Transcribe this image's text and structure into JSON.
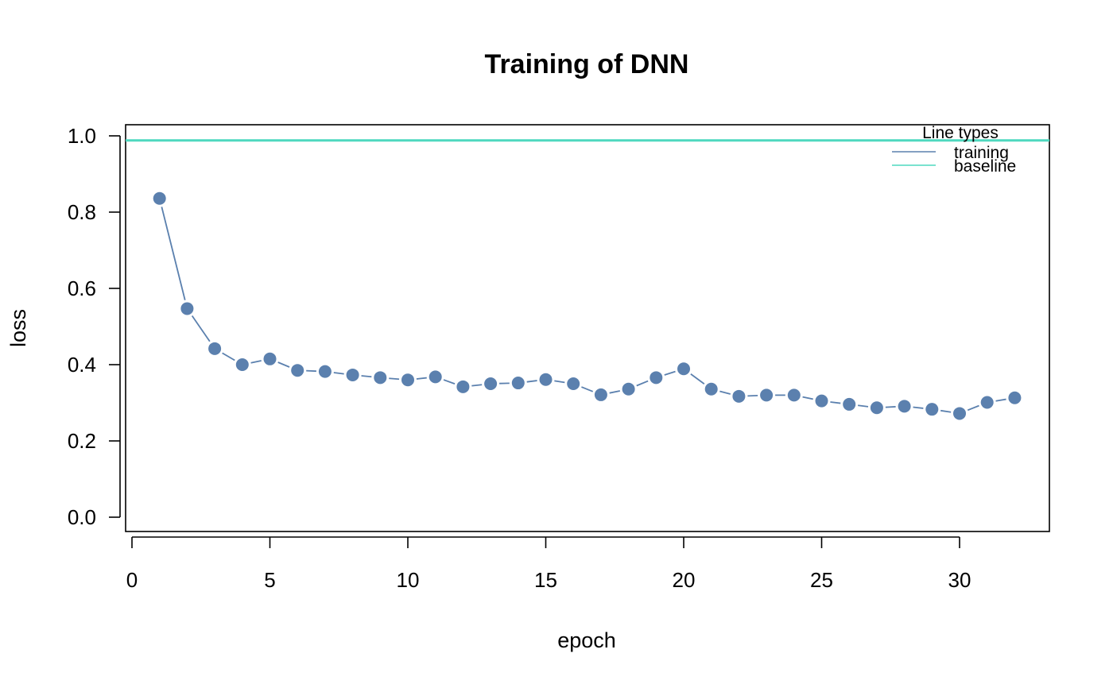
{
  "chart_data": {
    "type": "line",
    "title": "Training of DNN",
    "xlabel": "epoch",
    "ylabel": "loss",
    "xlim": [
      0,
      33
    ],
    "ylim": [
      0,
      1.0
    ],
    "x_ticks": [
      "0",
      "5",
      "10",
      "15",
      "20",
      "25",
      "30"
    ],
    "y_ticks": [
      "0.0",
      "0.2",
      "0.4",
      "0.6",
      "0.8",
      "1.0"
    ],
    "grid": false,
    "legend": {
      "title": "Line types",
      "position": "top-right",
      "entries": [
        "training",
        "baseline"
      ]
    },
    "series": [
      {
        "name": "training",
        "style": "line-with-points",
        "color": "#5b80ae",
        "x": [
          1,
          2,
          3,
          4,
          5,
          6,
          7,
          8,
          9,
          10,
          11,
          12,
          13,
          14,
          15,
          16,
          17,
          18,
          19,
          20,
          21,
          22,
          23,
          24,
          25,
          26,
          27,
          28,
          29,
          30,
          31,
          32
        ],
        "y": [
          0.836,
          0.547,
          0.442,
          0.4,
          0.415,
          0.385,
          0.382,
          0.373,
          0.366,
          0.36,
          0.368,
          0.342,
          0.35,
          0.352,
          0.361,
          0.35,
          0.321,
          0.336,
          0.366,
          0.389,
          0.336,
          0.317,
          0.32,
          0.32,
          0.305,
          0.296,
          0.287,
          0.291,
          0.283,
          0.272,
          0.301,
          0.313
        ]
      },
      {
        "name": "baseline",
        "style": "horizontal-line",
        "color": "#4fd8bf",
        "y": 0.988
      }
    ]
  }
}
